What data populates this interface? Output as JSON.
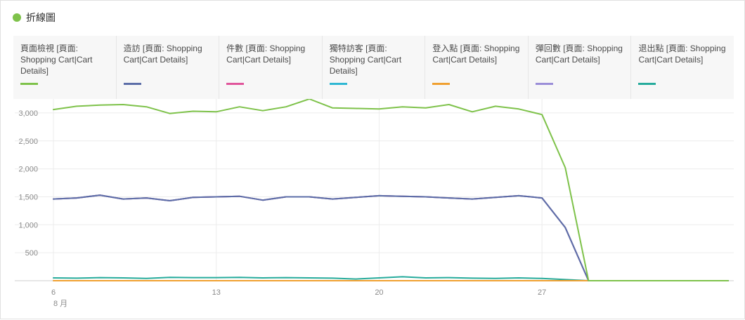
{
  "header": {
    "title": "折線圖",
    "dot_color": "#7ec24a"
  },
  "legend": [
    {
      "label": "頁面檢視 [頁面: Shopping Cart|Cart Details]",
      "color": "#7ec24a"
    },
    {
      "label": "造訪 [頁面: Shopping Cart|Cart Details]",
      "color": "#5c6ea8"
    },
    {
      "label": "件數 [頁面: Shopping Cart|Cart Details]",
      "color": "#e0559b"
    },
    {
      "label": "獨特訪客 [頁面: Shopping Cart|Cart Details]",
      "color": "#2fb7d3"
    },
    {
      "label": "登入點 [頁面: Shopping Cart|Cart Details]",
      "color": "#f0a030"
    },
    {
      "label": "彈回數 [頁面: Shopping Cart|Cart Details]",
      "color": "#9b8ed8"
    },
    {
      "label": "退出點 [頁面: Shopping Cart|Cart Details]",
      "color": "#26ab9c"
    }
  ],
  "chart_data": {
    "type": "line",
    "x": [
      6,
      7,
      8,
      9,
      10,
      11,
      12,
      13,
      14,
      15,
      16,
      17,
      18,
      19,
      20,
      21,
      22,
      23,
      24,
      25,
      26,
      27,
      28,
      29,
      30,
      31,
      32,
      33,
      34,
      35
    ],
    "x_ticks": [
      {
        "value": 6,
        "label": "6",
        "sublabel": "8 月"
      },
      {
        "value": 13,
        "label": "13",
        "sublabel": ""
      },
      {
        "value": 20,
        "label": "20",
        "sublabel": ""
      },
      {
        "value": 27,
        "label": "27",
        "sublabel": ""
      }
    ],
    "ylim": [
      0,
      3250
    ],
    "y_ticks": [
      {
        "value": 500,
        "label": "500"
      },
      {
        "value": 1000,
        "label": "1,000"
      },
      {
        "value": 1500,
        "label": "1,500"
      },
      {
        "value": 2000,
        "label": "2,000"
      },
      {
        "value": 2500,
        "label": "2,500"
      },
      {
        "value": 3000,
        "label": "3,000"
      }
    ],
    "grid": true,
    "series": [
      {
        "name": "頁面檢視 [頁面: Shopping Cart|Cart Details]",
        "color": "#7ec24a",
        "values": [
          3060,
          3120,
          3140,
          3150,
          3110,
          2990,
          3030,
          3020,
          3110,
          3040,
          3110,
          3250,
          3090,
          3080,
          3070,
          3110,
          3090,
          3150,
          3020,
          3120,
          3070,
          2970,
          2020,
          0,
          0,
          0,
          0,
          0,
          0,
          0
        ]
      },
      {
        "name": "造訪 [頁面: Shopping Cart|Cart Details]",
        "color": "#5c6ea8",
        "values": [
          1460,
          1480,
          1530,
          1460,
          1480,
          1430,
          1490,
          1500,
          1510,
          1440,
          1500,
          1500,
          1460,
          1490,
          1520,
          1510,
          1500,
          1480,
          1460,
          1490,
          1520,
          1480,
          950,
          0,
          0,
          0,
          0,
          0,
          0,
          0
        ]
      },
      {
        "name": "件數 [頁面: Shopping Cart|Cart Details]",
        "color": "#e0559b",
        "values": [
          1460,
          1480,
          1530,
          1460,
          1480,
          1430,
          1490,
          1500,
          1510,
          1440,
          1500,
          1500,
          1460,
          1490,
          1520,
          1510,
          1500,
          1480,
          1460,
          1490,
          1520,
          1480,
          950,
          0,
          0,
          0,
          0,
          0,
          0,
          0
        ]
      },
      {
        "name": "獨特訪客 [頁面: Shopping Cart|Cart Details]",
        "color": "#2fb7d3",
        "values": [
          1460,
          1480,
          1530,
          1460,
          1480,
          1430,
          1490,
          1500,
          1510,
          1440,
          1500,
          1500,
          1460,
          1490,
          1520,
          1510,
          1500,
          1480,
          1460,
          1490,
          1520,
          1480,
          950,
          0,
          0,
          0,
          0,
          0,
          0,
          0
        ]
      },
      {
        "name": "登入點 [頁面: Shopping Cart|Cart Details]",
        "color": "#f0a030",
        "values": [
          0,
          0,
          0,
          0,
          0,
          0,
          0,
          0,
          0,
          0,
          0,
          0,
          0,
          0,
          0,
          0,
          0,
          0,
          0,
          0,
          0,
          0,
          0,
          0,
          0,
          0,
          0,
          0,
          0,
          0
        ]
      },
      {
        "name": "彈回數 [頁面: Shopping Cart|Cart Details]",
        "color": "#9b8ed8",
        "values": [
          0,
          0,
          0,
          0,
          0,
          0,
          0,
          0,
          0,
          0,
          0,
          0,
          0,
          0,
          0,
          0,
          0,
          0,
          0,
          0,
          0,
          0,
          0,
          0,
          0,
          0,
          0,
          0,
          0,
          0
        ]
      },
      {
        "name": "退出點 [頁面: Shopping Cart|Cart Details]",
        "color": "#26ab9c",
        "values": [
          50,
          45,
          55,
          50,
          40,
          60,
          55,
          55,
          60,
          50,
          55,
          50,
          45,
          30,
          50,
          70,
          50,
          55,
          45,
          40,
          50,
          40,
          20,
          0,
          0,
          0,
          0,
          0,
          0,
          0
        ]
      }
    ]
  }
}
